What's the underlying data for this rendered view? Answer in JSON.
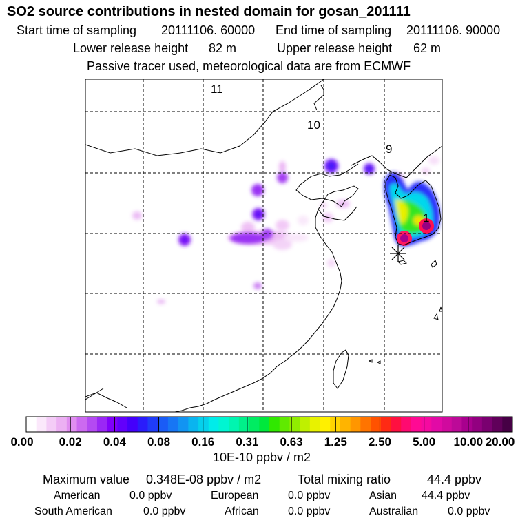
{
  "title": "SO2 source contributions in nested domain for gosan_201111",
  "start_time": {
    "label": "Start time of sampling",
    "value": "20111106. 60000"
  },
  "end_time": {
    "label": "End time of sampling",
    "value": "20111106. 90000"
  },
  "lower_height": {
    "label": "Lower release height",
    "value": "82 m"
  },
  "upper_height": {
    "label": "Upper release height",
    "value": "62 m"
  },
  "note": "Passive tracer used, meteorological data are from ECMWF",
  "chart_data": {
    "type": "heatmap",
    "title": "SO2 source contributions in nested domain for gosan_201111",
    "region_labels": [
      "11",
      "10",
      "9",
      "1"
    ],
    "colorbar": {
      "ticks": [
        "0.00",
        "0.02",
        "0.04",
        "0.08",
        "0.16",
        "0.31",
        "0.63",
        "1.25",
        "2.50",
        "5.00",
        "10.00",
        "20.00"
      ],
      "unit": "10E-10 ppbv / m2",
      "colors": [
        "#ffffff",
        "#fbe8fb",
        "#f4ccf7",
        "#ecb0f3",
        "#e08ef0",
        "#cc6af0",
        "#b44af2",
        "#9a27f5",
        "#8000fa",
        "#6200fb",
        "#4400fb",
        "#2a1cfb",
        "#1f3cf8",
        "#1a5cf6",
        "#1776f4",
        "#1294f2",
        "#0ab4ef",
        "#05d0ec",
        "#00ecea",
        "#00f5d2",
        "#00f5b0",
        "#00f08a",
        "#00ec62",
        "#00e83c",
        "#30e800",
        "#60ea00",
        "#90ec00",
        "#bff000",
        "#e8f200",
        "#fff000",
        "#ffd400",
        "#ffb400",
        "#ff9600",
        "#ff7400",
        "#ff5200",
        "#ff2a14",
        "#ff1040",
        "#ff0a70",
        "#ff0a94",
        "#f50aa0",
        "#e20aa6",
        "#d00a9e",
        "#bc0a98",
        "#a8008e",
        "#920080",
        "#7a0070",
        "#60005a",
        "#460045"
      ]
    }
  },
  "stats": {
    "max_label": "Maximum value",
    "max_value": "0.348E-08 ppbv / m2",
    "total_label": "Total mixing ratio",
    "total_value": "44.4 ppbv",
    "regions": [
      {
        "name": "American",
        "value": "0.0 ppbv"
      },
      {
        "name": "European",
        "value": "0.0 ppbv"
      },
      {
        "name": "Asian",
        "value": "44.4 ppbv"
      },
      {
        "name": "South American",
        "value": "0.0 ppbv"
      },
      {
        "name": "African",
        "value": "0.0 ppbv"
      },
      {
        "name": "Australian",
        "value": "0.0 ppbv"
      }
    ]
  }
}
